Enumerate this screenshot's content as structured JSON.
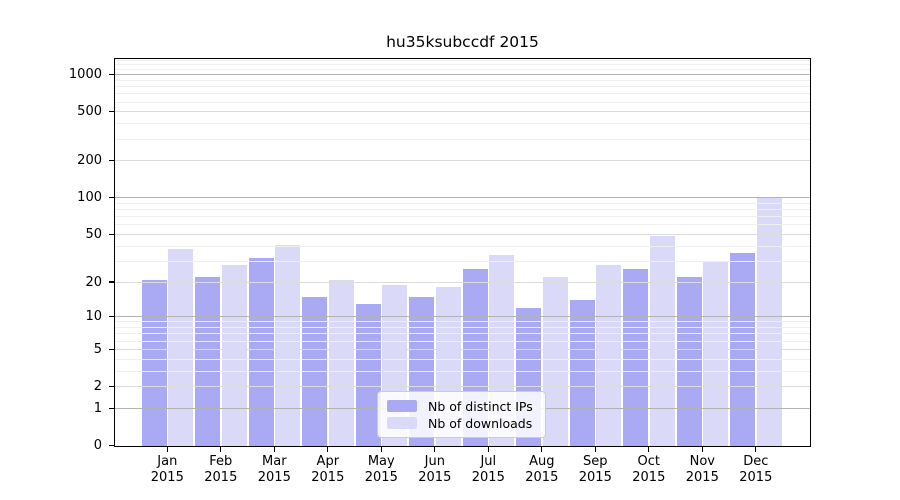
{
  "chart_data": {
    "type": "bar",
    "title": "hu35ksubccdf 2015",
    "categories": [
      "Jan",
      "Feb",
      "Mar",
      "Apr",
      "May",
      "Jun",
      "Jul",
      "Aug",
      "Sep",
      "Oct",
      "Nov",
      "Dec"
    ],
    "year_label": "2015",
    "series": [
      {
        "name": "Nb of distinct IPs",
        "color": "#a9a9f4",
        "values": [
          21,
          22,
          32,
          15,
          13,
          15,
          26,
          12,
          14,
          26,
          22,
          35
        ]
      },
      {
        "name": "Nb of downloads",
        "color": "#dadaf8",
        "values": [
          38,
          28,
          41,
          21,
          19,
          18,
          34,
          22,
          28,
          49,
          30,
          100
        ]
      }
    ],
    "xlabel": "",
    "ylabel": "",
    "y_scale": "log1p",
    "ylim": [
      0,
      1340
    ],
    "y_ticks": [
      0,
      1,
      2,
      5,
      10,
      20,
      50,
      100,
      200,
      500,
      1000
    ],
    "y_major_ticks": [
      1,
      10,
      100,
      1000
    ],
    "y_minor_gridlines": [
      3,
      4,
      6,
      7,
      8,
      9,
      30,
      40,
      60,
      70,
      80,
      90,
      300,
      400,
      600,
      700,
      800,
      900,
      1100,
      1200,
      1300
    ],
    "grid": true,
    "legend_position": "lower center",
    "colors": {
      "major_grid": "#b3b3b3",
      "medium_grid": "#dcdcdc",
      "minor_grid": "#efefef",
      "spine": "#000000",
      "text": "#000000",
      "background": "#ffffff"
    }
  }
}
